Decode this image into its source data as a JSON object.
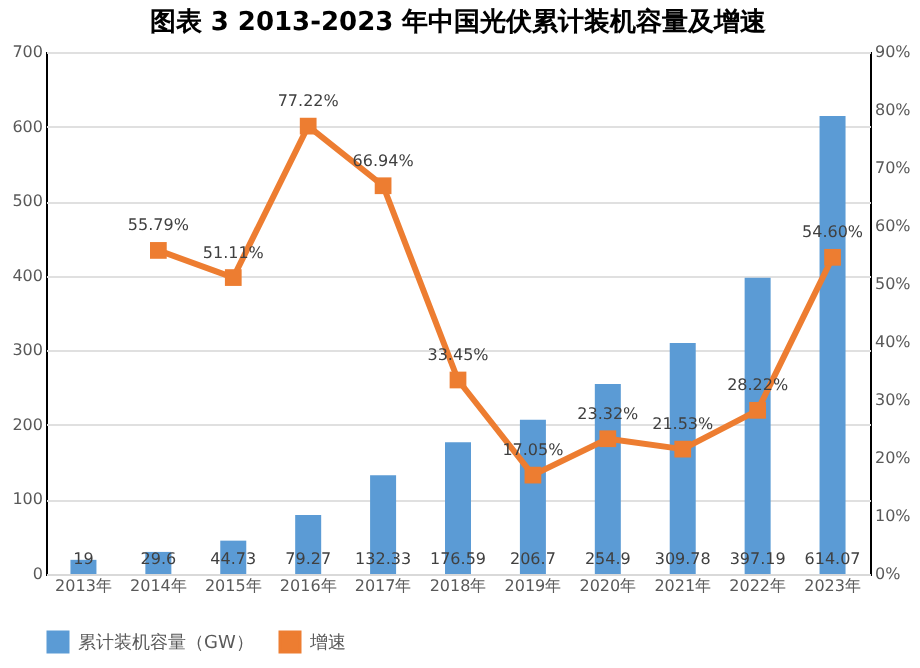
{
  "chart_data": {
    "type": "bar",
    "title": "图表 3    2013-2023 年中国光伏累计装机容量及增速",
    "categories": [
      "2013年",
      "2014年",
      "2015年",
      "2016年",
      "2017年",
      "2018年",
      "2019年",
      "2020年",
      "2021年",
      "2022年",
      "2023年"
    ],
    "series": [
      {
        "name": "累计装机容量（GW）",
        "color": "#5b9bd5",
        "values": [
          19,
          29.6,
          44.73,
          79.27,
          132.33,
          176.59,
          206.7,
          254.9,
          309.78,
          397.19,
          614.07
        ],
        "value_labels": [
          "19",
          "29.6",
          "44.73",
          "79.27",
          "132.33",
          "176.59",
          "206.7",
          "254.9",
          "309.78",
          "397.19",
          "614.07"
        ]
      },
      {
        "name": "增速",
        "type": "line",
        "axis": "y2",
        "color": "#ed7d31",
        "marker": "square",
        "values": [
          null,
          55.79,
          51.11,
          77.22,
          66.94,
          33.45,
          17.05,
          23.32,
          21.53,
          28.22,
          54.6
        ],
        "value_labels": [
          null,
          "55.79%",
          "51.11%",
          "77.22%",
          "66.94%",
          "33.45%",
          "17.05%",
          "23.32%",
          "21.53%",
          "28.22%",
          "54.60%"
        ]
      }
    ],
    "ylim": [
      0,
      700
    ],
    "yticks": [
      0,
      100,
      200,
      300,
      400,
      500,
      600,
      700
    ],
    "y2lim": [
      0,
      90
    ],
    "y2ticks": [
      {
        "value": 0,
        "label": "0%"
      },
      {
        "value": 10,
        "label": "10%"
      },
      {
        "value": 20,
        "label": "20%"
      },
      {
        "value": 30,
        "label": "30%"
      },
      {
        "value": 40,
        "label": "40%"
      },
      {
        "value": 50,
        "label": "50%"
      },
      {
        "value": 60,
        "label": "60%"
      },
      {
        "value": 70,
        "label": "70%"
      },
      {
        "value": 80,
        "label": "80%"
      },
      {
        "value": 90,
        "label": "90%"
      }
    ],
    "grid": "y",
    "legend": "bottom"
  }
}
